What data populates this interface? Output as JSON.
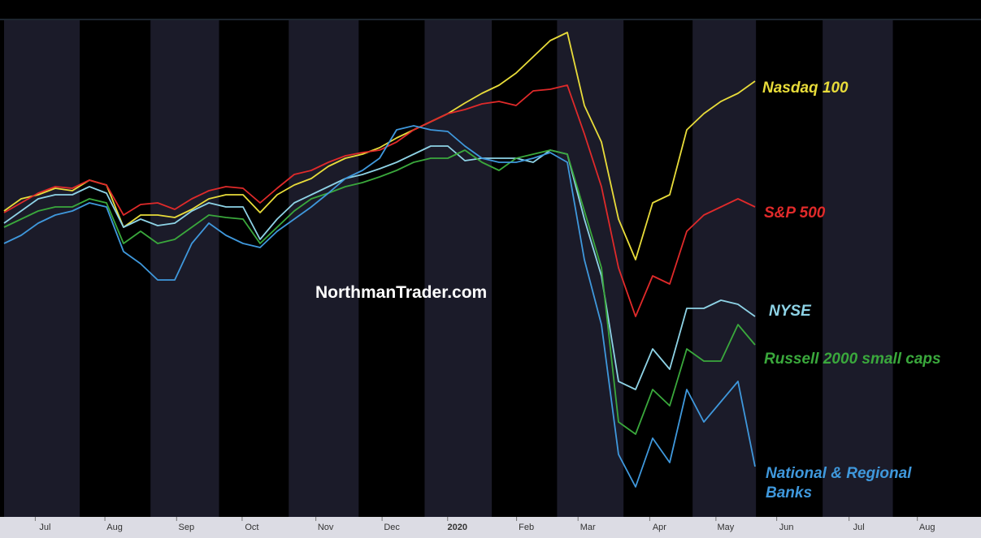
{
  "chart_data": {
    "type": "line",
    "watermark": "NorthmanTrader.com",
    "xlim": [
      0,
      14.31
    ],
    "xticks": [
      {
        "value": 0.6,
        "label": "Jul"
      },
      {
        "value": 1.62,
        "label": "Aug"
      },
      {
        "value": 2.67,
        "label": "Sep"
      },
      {
        "value": 3.63,
        "label": "Oct"
      },
      {
        "value": 4.71,
        "label": "Nov"
      },
      {
        "value": 5.68,
        "label": "Dec"
      },
      {
        "value": 6.64,
        "label": "2020"
      },
      {
        "value": 7.65,
        "label": "Feb"
      },
      {
        "value": 8.55,
        "label": "Mar"
      },
      {
        "value": 9.6,
        "label": "Apr"
      },
      {
        "value": 10.57,
        "label": "May"
      },
      {
        "value": 11.46,
        "label": "Jun"
      },
      {
        "value": 12.52,
        "label": "Jul"
      },
      {
        "value": 13.52,
        "label": "Aug"
      }
    ],
    "ylim": [
      0,
      615
    ],
    "x": [
      0,
      0.25,
      0.5,
      0.75,
      1,
      1.25,
      1.5,
      1.75,
      2,
      2.25,
      2.5,
      2.75,
      3,
      3.25,
      3.5,
      3.75,
      4,
      4.25,
      4.5,
      4.75,
      5,
      5.25,
      5.5,
      5.75,
      6,
      6.25,
      6.5,
      6.75,
      7,
      7.25,
      7.5,
      7.75,
      8,
      8.25,
      8.5,
      8.75,
      9,
      9.25,
      9.5,
      9.75,
      10,
      10.25,
      10.5,
      10.75,
      11
    ],
    "series": [
      {
        "name": "Nasdaq 100",
        "color": "#e8dc3a",
        "values": [
          380,
          395,
          400,
          408,
          405,
          418,
          412,
          360,
          375,
          375,
          372,
          382,
          395,
          400,
          400,
          378,
          400,
          412,
          420,
          435,
          445,
          450,
          458,
          470,
          480,
          490,
          500,
          513,
          525,
          535,
          550,
          570,
          590,
          600,
          510,
          465,
          370,
          320,
          390,
          400,
          480,
          500,
          515,
          525,
          540
        ]
      },
      {
        "name": "S&P 500",
        "color": "#e02a2a",
        "values": [
          378,
          390,
          402,
          410,
          408,
          418,
          412,
          375,
          388,
          390,
          382,
          395,
          405,
          410,
          408,
          390,
          408,
          425,
          430,
          440,
          448,
          452,
          455,
          465,
          480,
          490,
          500,
          505,
          512,
          515,
          510,
          528,
          530,
          535,
          475,
          410,
          310,
          250,
          300,
          290,
          355,
          375,
          385,
          395,
          385
        ]
      },
      {
        "name": "NYSE",
        "color": "#8ed3e6",
        "values": [
          365,
          380,
          395,
          400,
          400,
          410,
          402,
          360,
          370,
          362,
          365,
          380,
          390,
          385,
          385,
          345,
          370,
          390,
          400,
          410,
          420,
          425,
          432,
          440,
          450,
          460,
          460,
          442,
          445,
          445,
          445,
          440,
          455,
          450,
          370,
          300,
          170,
          160,
          210,
          185,
          260,
          260,
          270,
          265,
          250
        ]
      },
      {
        "name": "Russell 2000 small caps",
        "color": "#3aa83c",
        "values": [
          360,
          370,
          380,
          385,
          385,
          395,
          390,
          340,
          355,
          340,
          345,
          360,
          375,
          372,
          370,
          340,
          360,
          380,
          395,
          402,
          410,
          415,
          422,
          430,
          440,
          445,
          445,
          455,
          440,
          430,
          445,
          450,
          455,
          450,
          380,
          310,
          120,
          105,
          160,
          140,
          210,
          195,
          195,
          240,
          215
        ]
      },
      {
        "name": "National & Regional Banks",
        "color": "#3f98dc",
        "values": [
          340,
          350,
          365,
          375,
          380,
          390,
          385,
          330,
          315,
          295,
          295,
          340,
          365,
          350,
          340,
          335,
          355,
          370,
          385,
          402,
          420,
          430,
          445,
          480,
          485,
          480,
          478,
          460,
          445,
          440,
          440,
          445,
          452,
          440,
          320,
          240,
          80,
          40,
          100,
          70,
          160,
          120,
          145,
          170,
          65
        ]
      }
    ]
  }
}
